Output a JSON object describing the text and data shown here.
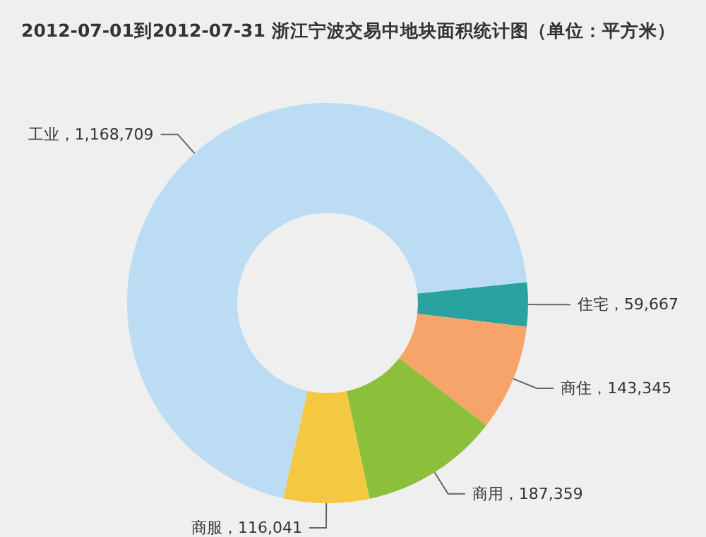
{
  "chart_data": {
    "type": "donut",
    "title": "2012-07-01到2012-07-31 浙江宁波交易中地块面积统计图（单位：平方米）",
    "categories": [
      "住宅",
      "商住",
      "商用",
      "商服",
      "工业"
    ],
    "values": [
      59667,
      143345,
      187359,
      116041,
      1168709
    ],
    "value_labels": [
      "59,667",
      "143,345",
      "187,359",
      "116,041",
      "1,168,709"
    ],
    "colors": [
      "#2aa3a0",
      "#f7a46a",
      "#8cc03a",
      "#f5c842",
      "#bcdcf4"
    ],
    "legend": false
  }
}
